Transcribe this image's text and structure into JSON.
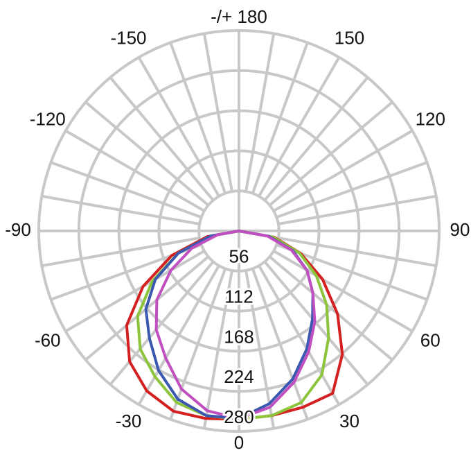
{
  "chart_data": {
    "type": "polar",
    "x": [
      -90,
      -80,
      -70,
      -60,
      -50,
      -40,
      -30,
      -20,
      -10,
      0,
      10,
      20,
      30,
      40,
      50,
      60,
      70,
      80,
      90
    ],
    "series": [
      {
        "color": "#d42020",
        "values": [
          0,
          45,
          100,
          155,
          205,
          238,
          258,
          268,
          266,
          263,
          262,
          262,
          262,
          225,
          180,
          135,
          92,
          50,
          0
        ]
      },
      {
        "color": "#8cc43c",
        "values": [
          0,
          40,
          90,
          140,
          185,
          215,
          235,
          255,
          262,
          263,
          262,
          255,
          232,
          195,
          160,
          125,
          90,
          48,
          0
        ]
      },
      {
        "color": "#3a58b0",
        "values": [
          0,
          40,
          90,
          135,
          170,
          195,
          225,
          250,
          262,
          262,
          245,
          220,
          190,
          160,
          135,
          110,
          80,
          42,
          0
        ]
      },
      {
        "color": "#c050c0",
        "values": [
          0,
          30,
          70,
          110,
          150,
          180,
          205,
          235,
          255,
          262,
          250,
          225,
          195,
          165,
          135,
          110,
          78,
          40,
          0
        ]
      }
    ],
    "rlim": [
      0,
      280
    ],
    "rticks": [
      56,
      112,
      168,
      224,
      280
    ],
    "angleticks": [
      0,
      30,
      60,
      90,
      120,
      150,
      {
        "value": 180,
        "label": "-/+ 180"
      },
      -150,
      -120,
      -90,
      -60,
      -30
    ],
    "grid": true
  }
}
